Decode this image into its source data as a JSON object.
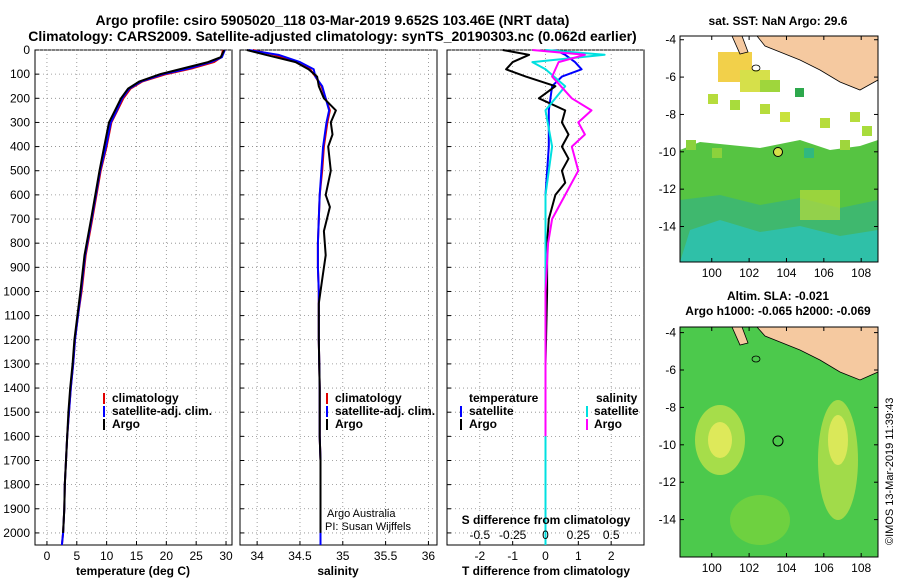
{
  "titles": {
    "line1": "Argo profile: csiro 5905020_118 03-Mar-2019 9.652S 103.46E (NRT data)",
    "line2": "Climatology: CARS2009. Satellite-adjusted climatology: synTS_20190303.nc (0.062d earlier)"
  },
  "colors": {
    "climatology": "#e00000",
    "satellite": "#0000ff",
    "argo": "#000000",
    "sal_satellite": "#00e0e0",
    "sal_argo": "#ff00ff",
    "land": "#f5c9a0",
    "sea_green": "#4cc94c"
  },
  "depth_axis": {
    "min": 0,
    "max": 2050,
    "ticks": [
      "0",
      "100",
      "200",
      "300",
      "400",
      "500",
      "600",
      "700",
      "800",
      "900",
      "1000",
      "1100",
      "1200",
      "1300",
      "1400",
      "1500",
      "1600",
      "1700",
      "1800",
      "1900",
      "2000"
    ]
  },
  "chart_data": [
    {
      "type": "line",
      "panel": "temperature",
      "xlabel": "temperature (deg C)",
      "xlim": [
        -2,
        31
      ],
      "xticks": [
        "0",
        "5",
        "10",
        "15",
        "20",
        "25",
        "30"
      ],
      "y_reversed": true,
      "grid": true,
      "legend_position": "bottom-center",
      "legend": [
        "climatology",
        "satellite-adj. clim.",
        "Argo"
      ],
      "series": [
        {
          "name": "climatology",
          "color_key": "climatology",
          "x": [
            29.5,
            29.2,
            28.0,
            24.5,
            20.0,
            16.0,
            14.0,
            12.8,
            11.8,
            10.8,
            10.0,
            9.0,
            8.3,
            7.6,
            6.5,
            5.8,
            5.2,
            4.7,
            4.4,
            4.0,
            3.7,
            3.4,
            3.2,
            3.0,
            2.9,
            2.7,
            2.5
          ],
          "y": [
            0,
            30,
            50,
            75,
            100,
            130,
            160,
            200,
            250,
            300,
            400,
            500,
            600,
            700,
            850,
            1000,
            1100,
            1200,
            1300,
            1400,
            1500,
            1600,
            1700,
            1800,
            1900,
            2000,
            2050
          ]
        },
        {
          "name": "satellite-adj. clim.",
          "color_key": "satellite",
          "x": [
            29.8,
            29.3,
            27.5,
            24.0,
            19.5,
            15.8,
            13.8,
            12.6,
            11.7,
            10.7,
            9.9,
            8.9,
            8.2,
            7.5,
            6.4,
            5.7,
            5.2,
            4.7,
            4.4,
            4.0,
            3.7,
            3.4,
            3.2,
            3.0,
            2.9,
            2.7,
            2.5
          ],
          "y": [
            0,
            30,
            50,
            75,
            100,
            130,
            160,
            200,
            250,
            300,
            400,
            500,
            600,
            700,
            850,
            1000,
            1100,
            1200,
            1300,
            1400,
            1500,
            1600,
            1700,
            1800,
            1900,
            2000,
            2050
          ]
        },
        {
          "name": "Argo",
          "color_key": "argo",
          "x": [
            29.7,
            29.1,
            27.0,
            23.0,
            19.0,
            15.5,
            13.6,
            12.4,
            11.4,
            10.4,
            9.6,
            8.8,
            8.1,
            7.4,
            6.3,
            5.6,
            5.1,
            4.6,
            4.3,
            3.9,
            3.6,
            3.4,
            3.2,
            3.0,
            2.9,
            2.7
          ],
          "y": [
            0,
            30,
            50,
            75,
            100,
            130,
            160,
            200,
            250,
            300,
            400,
            500,
            600,
            700,
            850,
            1000,
            1100,
            1200,
            1300,
            1400,
            1500,
            1600,
            1700,
            1800,
            1900,
            2000
          ]
        }
      ]
    },
    {
      "type": "line",
      "panel": "salinity",
      "xlabel": "salinity",
      "xlim": [
        33.8,
        36.1
      ],
      "xticks": [
        "34",
        "34.5",
        "35",
        "35.5",
        "36"
      ],
      "y_reversed": true,
      "grid": true,
      "legend_position": "bottom-center",
      "legend": [
        "climatology",
        "satellite-adj. clim.",
        "Argo"
      ],
      "annotation": [
        "Argo Australia",
        "PI: Susan Wijffels"
      ],
      "series": [
        {
          "name": "climatology",
          "color_key": "climatology",
          "x": [
            33.95,
            34.2,
            34.45,
            34.62,
            34.68,
            34.75,
            34.85,
            34.82,
            34.78,
            34.76,
            34.73,
            34.72,
            34.71,
            34.71,
            34.72,
            34.72,
            34.73,
            34.73,
            34.74,
            34.74,
            34.74,
            34.74
          ],
          "y": [
            0,
            20,
            50,
            80,
            110,
            150,
            250,
            300,
            400,
            500,
            600,
            700,
            800,
            900,
            1000,
            1200,
            1400,
            1600,
            1700,
            1800,
            1900,
            2050
          ]
        },
        {
          "name": "satellite-adj. clim.",
          "color_key": "satellite",
          "x": [
            33.9,
            34.25,
            34.5,
            34.66,
            34.68,
            34.76,
            34.84,
            34.81,
            34.77,
            34.75,
            34.73,
            34.72,
            34.71,
            34.71,
            34.72,
            34.72,
            34.73,
            34.73,
            34.74,
            34.74,
            34.74,
            34.74
          ],
          "y": [
            0,
            20,
            50,
            80,
            110,
            150,
            250,
            300,
            400,
            500,
            600,
            700,
            800,
            900,
            1000,
            1200,
            1400,
            1600,
            1700,
            1800,
            1900,
            2050
          ]
        },
        {
          "name": "Argo",
          "color_key": "argo",
          "x": [
            33.88,
            34.1,
            34.45,
            34.6,
            34.7,
            34.72,
            34.78,
            34.92,
            34.86,
            34.88,
            34.83,
            34.86,
            34.8,
            34.85,
            34.78,
            34.8,
            34.76,
            34.72,
            34.72,
            34.73,
            34.73,
            34.74,
            34.74,
            34.74,
            34.74
          ],
          "y": [
            0,
            20,
            50,
            80,
            110,
            150,
            200,
            250,
            300,
            350,
            400,
            500,
            600,
            650,
            750,
            850,
            950,
            1050,
            1200,
            1400,
            1600,
            1700,
            1800,
            1900,
            2000
          ]
        }
      ]
    },
    {
      "type": "line",
      "panel": "difference",
      "xlabel": "T difference from climatology",
      "xlim": [
        -3,
        3
      ],
      "xticks": [
        "-2",
        "-1",
        "0",
        "1",
        "2"
      ],
      "secondary_xlabel": "S difference from climatology",
      "secondary_xticks": [
        "-0.5",
        "-0.25",
        "0",
        "0.25",
        "0.5"
      ],
      "y_reversed": true,
      "grid": true,
      "legend_temperature_title": "temperature",
      "legend_salinity_title": "salinity",
      "legend": [
        "satellite",
        "Argo"
      ],
      "series": [
        {
          "name": "satellite",
          "group": "temperature",
          "color_key": "satellite",
          "x": [
            0.3,
            0.6,
            0.9,
            1.1,
            0.5,
            0.2,
            0.1,
            0.1,
            0.0,
            0.0,
            0.0,
            0.0,
            0.0,
            0.0,
            0.0
          ],
          "y": [
            0,
            20,
            50,
            80,
            110,
            150,
            250,
            400,
            600,
            800,
            1000,
            1300,
            1600,
            1900,
            2050
          ]
        },
        {
          "name": "Argo",
          "group": "temperature",
          "color_key": "argo",
          "x": [
            -1.3,
            -0.5,
            -1.0,
            -1.2,
            -0.6,
            0.3,
            -0.2,
            0.6,
            0.5,
            0.7,
            0.5,
            0.7,
            0.5,
            0.6,
            0.3,
            0.2,
            0.1,
            0.05,
            0.05,
            0.0,
            0.0,
            0.0
          ],
          "y": [
            0,
            20,
            50,
            80,
            110,
            150,
            200,
            250,
            300,
            350,
            400,
            450,
            500,
            550,
            600,
            650,
            700,
            800,
            1000,
            1300,
            1600,
            1900
          ]
        },
        {
          "name": "satellite",
          "group": "salinity",
          "color_key": "sal_satellite",
          "x": [
            0.0,
            0.45,
            -0.1,
            0.0,
            0.15,
            0.0,
            0.05,
            0.0,
            0.0,
            0.0,
            0.0,
            0.0,
            0.0
          ],
          "y": [
            0,
            20,
            50,
            80,
            150,
            250,
            400,
            600,
            800,
            1000,
            1300,
            1600,
            2050
          ]
        },
        {
          "name": "Argo",
          "group": "salinity",
          "color_key": "sal_argo",
          "x": [
            -0.1,
            0.3,
            0.1,
            0.05,
            0.2,
            0.35,
            0.25,
            0.3,
            0.2,
            0.25,
            0.15,
            0.1,
            0.05,
            0.02,
            0.0,
            0.0,
            0.0
          ],
          "y": [
            0,
            20,
            50,
            110,
            200,
            250,
            300,
            350,
            400,
            500,
            600,
            650,
            700,
            800,
            1000,
            1300,
            1600
          ]
        }
      ]
    }
  ],
  "maps": [
    {
      "title": "sat. SST: NaN Argo: 29.6",
      "xticks": [
        "100",
        "102",
        "104",
        "106",
        "108"
      ],
      "yticks": [
        "-4",
        "-6",
        "-8",
        "-10",
        "-12",
        "-14"
      ]
    },
    {
      "title_line1": "Altim. SLA: -0.021",
      "title_line2": "Argo h1000: -0.065 h2000: -0.069",
      "xticks": [
        "100",
        "102",
        "104",
        "106",
        "108"
      ],
      "yticks": [
        "-4",
        "-6",
        "-8",
        "-10",
        "-12",
        "-14"
      ]
    }
  ],
  "credit": "©IMOS 13-Mar-2019 11:39:43"
}
